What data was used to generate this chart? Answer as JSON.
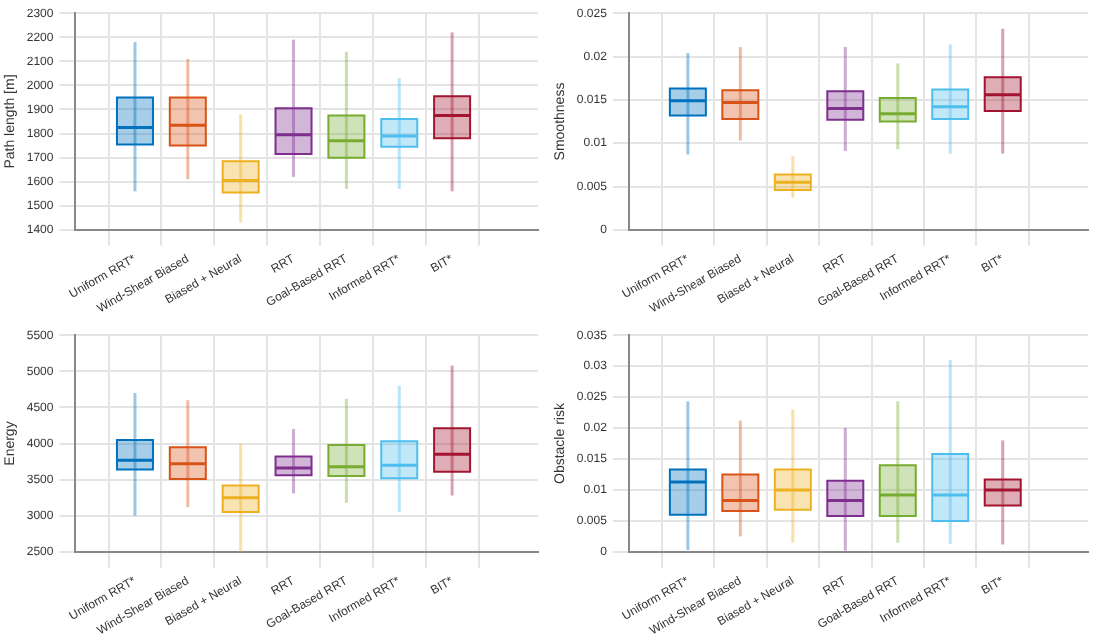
{
  "chart_data": [
    {
      "type": "box",
      "ylabel": "Path length [m]",
      "categories": [
        "Uniform RRT*",
        "Wind-Shear Biased",
        "Biased + Neural",
        "RRT",
        "Goal-Based RRT",
        "Informed RRT*",
        "BIT*"
      ],
      "colors": [
        "#0072bd",
        "#d95319",
        "#edb120",
        "#7e2f8e",
        "#77ac30",
        "#4dbeee",
        "#a2142f"
      ],
      "ylim": [
        1400,
        2300
      ],
      "yticks": [
        1400,
        1500,
        1600,
        1700,
        1800,
        1900,
        2000,
        2100,
        2200,
        2300
      ],
      "grid": true,
      "boxes": [
        {
          "low": 1560,
          "q1": 1755,
          "median": 1825,
          "q3": 1950,
          "high": 2180
        },
        {
          "low": 1610,
          "q1": 1750,
          "median": 1835,
          "q3": 1950,
          "high": 2110
        },
        {
          "low": 1430,
          "q1": 1555,
          "median": 1605,
          "q3": 1685,
          "high": 1880
        },
        {
          "low": 1620,
          "q1": 1715,
          "median": 1795,
          "q3": 1905,
          "high": 2190
        },
        {
          "low": 1570,
          "q1": 1700,
          "median": 1770,
          "q3": 1875,
          "high": 2140
        },
        {
          "low": 1570,
          "q1": 1745,
          "median": 1790,
          "q3": 1860,
          "high": 2030
        },
        {
          "low": 1560,
          "q1": 1780,
          "median": 1875,
          "q3": 1955,
          "high": 2220
        }
      ]
    },
    {
      "type": "box",
      "ylabel": "Smoothness",
      "categories": [
        "Uniform RRT*",
        "Wind-Shear Biased",
        "Biased + Neural",
        "RRT",
        "Goal-Based RRT",
        "Informed RRT*",
        "BIT*"
      ],
      "colors": [
        "#0072bd",
        "#d95319",
        "#edb120",
        "#7e2f8e",
        "#77ac30",
        "#4dbeee",
        "#a2142f"
      ],
      "ylim": [
        0,
        0.025
      ],
      "yticks": [
        0,
        0.005,
        0.01,
        0.015,
        0.02,
        0.025
      ],
      "grid": true,
      "boxes": [
        {
          "low": 0.0087,
          "q1": 0.0132,
          "median": 0.0149,
          "q3": 0.0163,
          "high": 0.0204
        },
        {
          "low": 0.0103,
          "q1": 0.0128,
          "median": 0.0147,
          "q3": 0.0161,
          "high": 0.0211
        },
        {
          "low": 0.0037,
          "q1": 0.0046,
          "median": 0.0055,
          "q3": 0.0064,
          "high": 0.0085
        },
        {
          "low": 0.0091,
          "q1": 0.0127,
          "median": 0.014,
          "q3": 0.016,
          "high": 0.0211
        },
        {
          "low": 0.0093,
          "q1": 0.0125,
          "median": 0.0134,
          "q3": 0.0152,
          "high": 0.0192
        },
        {
          "low": 0.0088,
          "q1": 0.0128,
          "median": 0.0142,
          "q3": 0.0162,
          "high": 0.0214
        },
        {
          "low": 0.0088,
          "q1": 0.0137,
          "median": 0.0156,
          "q3": 0.0176,
          "high": 0.0232
        }
      ]
    },
    {
      "type": "box",
      "ylabel": "Energy",
      "categories": [
        "Uniform RRT*",
        "Wind-Shear Biased",
        "Biased + Neural",
        "RRT",
        "Goal-Based RRT",
        "Informed RRT*",
        "BIT*"
      ],
      "colors": [
        "#0072bd",
        "#d95319",
        "#edb120",
        "#7e2f8e",
        "#77ac30",
        "#4dbeee",
        "#a2142f"
      ],
      "ylim": [
        2500,
        5500
      ],
      "yticks": [
        2500,
        3000,
        3500,
        4000,
        4500,
        5000,
        5500
      ],
      "grid": true,
      "boxes": [
        {
          "low": 3000,
          "q1": 3640,
          "median": 3770,
          "q3": 4050,
          "high": 4700
        },
        {
          "low": 3120,
          "q1": 3510,
          "median": 3720,
          "q3": 3950,
          "high": 4600
        },
        {
          "low": 2500,
          "q1": 3050,
          "median": 3250,
          "q3": 3420,
          "high": 4000
        },
        {
          "low": 3310,
          "q1": 3560,
          "median": 3660,
          "q3": 3820,
          "high": 4200
        },
        {
          "low": 3180,
          "q1": 3550,
          "median": 3680,
          "q3": 3980,
          "high": 4620
        },
        {
          "low": 3050,
          "q1": 3520,
          "median": 3700,
          "q3": 4030,
          "high": 4800
        },
        {
          "low": 3280,
          "q1": 3610,
          "median": 3850,
          "q3": 4210,
          "high": 5080
        }
      ]
    },
    {
      "type": "box",
      "ylabel": "Obstacle risk",
      "categories": [
        "Uniform RRT*",
        "Wind-Shear Biased",
        "Biased + Neural",
        "RRT",
        "Goal-Based RRT",
        "Informed RRT*",
        "BIT*"
      ],
      "colors": [
        "#0072bd",
        "#d95319",
        "#edb120",
        "#7e2f8e",
        "#77ac30",
        "#4dbeee",
        "#a2142f"
      ],
      "ylim": [
        0,
        0.035
      ],
      "yticks": [
        0,
        0.005,
        0.01,
        0.015,
        0.02,
        0.025,
        0.03,
        0.035
      ],
      "grid": true,
      "boxes": [
        {
          "low": 0.0003,
          "q1": 0.006,
          "median": 0.0113,
          "q3": 0.0133,
          "high": 0.0243
        },
        {
          "low": 0.0025,
          "q1": 0.0066,
          "median": 0.0083,
          "q3": 0.0125,
          "high": 0.0212
        },
        {
          "low": 0.0015,
          "q1": 0.0068,
          "median": 0.01,
          "q3": 0.0133,
          "high": 0.023
        },
        {
          "low": 0.0002,
          "q1": 0.0058,
          "median": 0.0083,
          "q3": 0.0115,
          "high": 0.02
        },
        {
          "low": 0.0015,
          "q1": 0.0058,
          "median": 0.0092,
          "q3": 0.014,
          "high": 0.0243
        },
        {
          "low": 0.0013,
          "q1": 0.005,
          "median": 0.0092,
          "q3": 0.0158,
          "high": 0.031
        },
        {
          "low": 0.0012,
          "q1": 0.0075,
          "median": 0.01,
          "q3": 0.0117,
          "high": 0.018
        }
      ]
    }
  ]
}
